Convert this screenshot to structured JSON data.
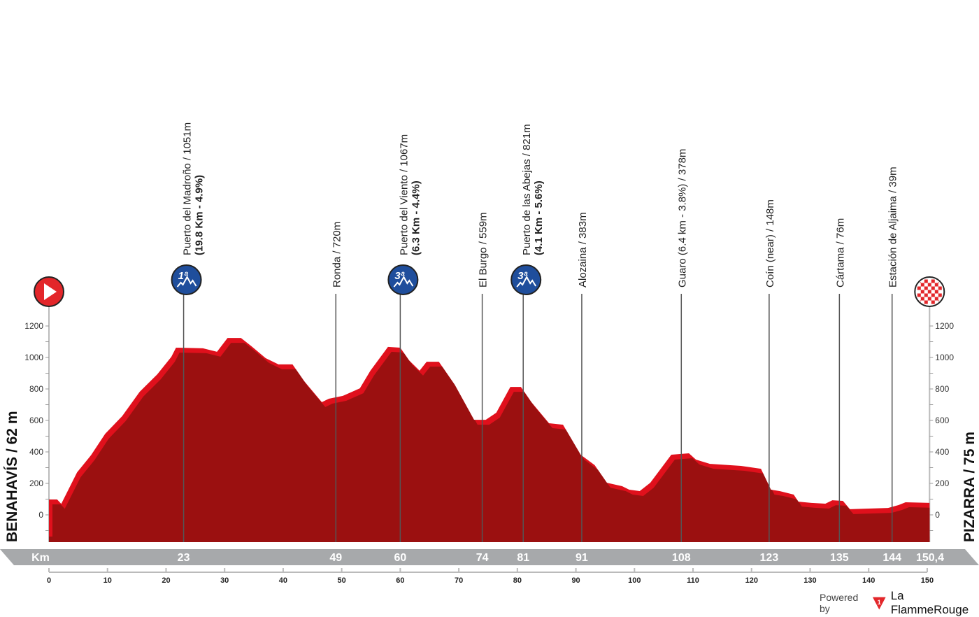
{
  "chart_data": {
    "type": "area",
    "start_label": "BENAHAVÍS / 62 m",
    "finish_label": "PIZARRA / 75 m",
    "km_bar_label": "Km",
    "total_distance_label": "150,4",
    "xlim": [
      0,
      150.4
    ],
    "ylim": [
      -170,
      1300
    ],
    "y_ticks": [
      0,
      200,
      400,
      600,
      800,
      1000,
      1200
    ],
    "x_ticks": [
      0,
      10,
      20,
      30,
      40,
      50,
      60,
      70,
      80,
      90,
      100,
      110,
      120,
      130,
      140,
      150
    ],
    "colors": {
      "profile_dark": "#9b1010",
      "profile_light": "#e0101c",
      "climb_badge": "#1f4e9c",
      "start": "#e3262a",
      "km_bar": "#a7a9ab"
    },
    "profile": [
      [
        0,
        98
      ],
      [
        1.4,
        98
      ],
      [
        2.1,
        70
      ],
      [
        4.8,
        270
      ],
      [
        7.2,
        380
      ],
      [
        9.6,
        515
      ],
      [
        12.5,
        627
      ],
      [
        15.5,
        782
      ],
      [
        18.5,
        893
      ],
      [
        20.9,
        1004
      ],
      [
        21.7,
        1062
      ],
      [
        26.3,
        1058
      ],
      [
        28.7,
        1036
      ],
      [
        30.5,
        1124
      ],
      [
        32.8,
        1124
      ],
      [
        34.6,
        1071
      ],
      [
        37,
        996
      ],
      [
        39.2,
        956
      ],
      [
        41.6,
        956
      ],
      [
        43.6,
        849
      ],
      [
        46.6,
        716
      ],
      [
        47.8,
        738
      ],
      [
        50.2,
        756
      ],
      [
        53.1,
        804
      ],
      [
        54.9,
        916
      ],
      [
        57.9,
        1067
      ],
      [
        60,
        1062
      ],
      [
        61.5,
        982
      ],
      [
        63.3,
        916
      ],
      [
        64.5,
        973
      ],
      [
        66.6,
        973
      ],
      [
        69.3,
        827
      ],
      [
        72.6,
        604
      ],
      [
        74.6,
        604
      ],
      [
        76.4,
        649
      ],
      [
        78.8,
        813
      ],
      [
        80.6,
        813
      ],
      [
        82.4,
        716
      ],
      [
        85.4,
        582
      ],
      [
        87.8,
        573
      ],
      [
        90.8,
        382
      ],
      [
        93.2,
        316
      ],
      [
        95.3,
        204
      ],
      [
        97.9,
        182
      ],
      [
        99.1,
        160
      ],
      [
        100.9,
        151
      ],
      [
        102.7,
        204
      ],
      [
        106.3,
        382
      ],
      [
        109.3,
        391
      ],
      [
        110.5,
        351
      ],
      [
        112.9,
        324
      ],
      [
        118.2,
        311
      ],
      [
        121.6,
        293
      ],
      [
        123.3,
        160
      ],
      [
        124.8,
        151
      ],
      [
        127.2,
        129
      ],
      [
        128,
        84
      ],
      [
        130.2,
        76
      ],
      [
        132.6,
        71
      ],
      [
        133.8,
        93
      ],
      [
        135.6,
        89
      ],
      [
        136.8,
        36
      ],
      [
        143.3,
        44
      ],
      [
        145.1,
        62
      ],
      [
        146.3,
        80
      ],
      [
        150.4,
        76
      ]
    ],
    "points": [
      {
        "km": 23,
        "km_label": "23",
        "label": "Puerto del Madroño / 1051m",
        "detail": "(19.8 Km - 4.9%)",
        "category": "1ª"
      },
      {
        "km": 49,
        "km_label": "49",
        "label": "Ronda / 720m"
      },
      {
        "km": 60,
        "km_label": "60",
        "label": "Puerto del Viento / 1067m",
        "detail": "(6.3 Km - 4.4%)",
        "category": "3ª"
      },
      {
        "km": 74,
        "km_label": "74",
        "label": "El Burgo / 559m"
      },
      {
        "km": 81,
        "km_label": "81",
        "label": "Puerto de las Abejas / 821m",
        "detail": "(4.1 Km - 5.6%)",
        "category": "3ª"
      },
      {
        "km": 91,
        "km_label": "91",
        "label": "Alozaina / 383m"
      },
      {
        "km": 108,
        "km_label": "108",
        "label": "Guaro (6.4 km - 3.8%) / 378m"
      },
      {
        "km": 123,
        "km_label": "123",
        "label": "Coín (near) / 148m"
      },
      {
        "km": 135,
        "km_label": "135",
        "label": "Cártama / 76m"
      },
      {
        "km": 144,
        "km_label": "144",
        "label": "Estación de Aljaima / 39m"
      }
    ]
  },
  "footer": {
    "powered_by": "Powered by",
    "brand": "La FlammeRouge",
    "brand_mark": "1"
  }
}
